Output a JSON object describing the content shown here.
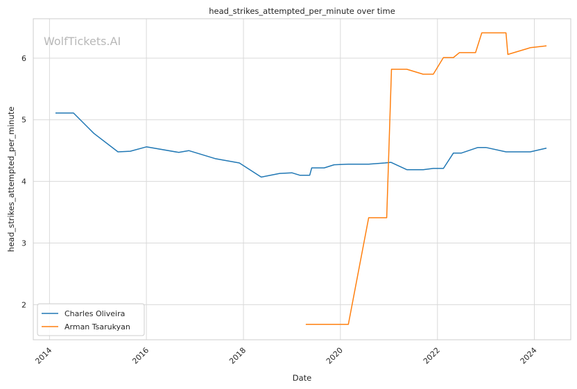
{
  "watermark": "WolfTickets.AI",
  "chart_data": {
    "type": "line",
    "title": "head_strikes_attempted_per_minute over time",
    "xlabel": "Date",
    "ylabel": "head_strikes_attempted_per_minute",
    "xlim": [
      "2013-09-01",
      "2024-10-01"
    ],
    "ylim": [
      1.43,
      6.64
    ],
    "xticks": [
      "2014",
      "2016",
      "2018",
      "2020",
      "2022",
      "2024"
    ],
    "yticks": [
      "2",
      "3",
      "4",
      "5",
      "6"
    ],
    "grid": true,
    "legend_position": "lower-left",
    "series": [
      {
        "name": "Charles Oliveira",
        "color": "#1f77b4",
        "points": [
          [
            "2014-02-15",
            5.11
          ],
          [
            "2014-07-01",
            5.11
          ],
          [
            "2014-12-01",
            4.78
          ],
          [
            "2015-06-01",
            4.48
          ],
          [
            "2015-09-01",
            4.49
          ],
          [
            "2016-01-01",
            4.56
          ],
          [
            "2016-09-01",
            4.47
          ],
          [
            "2016-11-15",
            4.5
          ],
          [
            "2017-06-01",
            4.37
          ],
          [
            "2017-12-01",
            4.3
          ],
          [
            "2018-05-15",
            4.07
          ],
          [
            "2018-10-01",
            4.13
          ],
          [
            "2019-01-01",
            4.14
          ],
          [
            "2019-03-01",
            4.1
          ],
          [
            "2019-05-15",
            4.1
          ],
          [
            "2019-05-30",
            4.22
          ],
          [
            "2019-09-01",
            4.22
          ],
          [
            "2019-11-15",
            4.27
          ],
          [
            "2020-03-01",
            4.28
          ],
          [
            "2020-08-01",
            4.28
          ],
          [
            "2020-12-01",
            4.3
          ],
          [
            "2021-01-15",
            4.31
          ],
          [
            "2021-05-15",
            4.19
          ],
          [
            "2021-09-15",
            4.19
          ],
          [
            "2021-12-01",
            4.21
          ],
          [
            "2022-02-15",
            4.21
          ],
          [
            "2022-05-01",
            4.46
          ],
          [
            "2022-07-01",
            4.46
          ],
          [
            "2022-11-01",
            4.55
          ],
          [
            "2023-01-01",
            4.55
          ],
          [
            "2023-06-01",
            4.48
          ],
          [
            "2023-12-01",
            4.48
          ],
          [
            "2024-04-01",
            4.54
          ]
        ]
      },
      {
        "name": "Arman Tsarukyan",
        "color": "#ff7f0e",
        "points": [
          [
            "2019-04-15",
            1.68
          ],
          [
            "2020-03-01",
            1.68
          ],
          [
            "2020-08-01",
            3.41
          ],
          [
            "2020-12-15",
            3.41
          ],
          [
            "2021-01-20",
            5.82
          ],
          [
            "2021-05-15",
            5.82
          ],
          [
            "2021-09-15",
            5.74
          ],
          [
            "2021-12-01",
            5.74
          ],
          [
            "2022-02-15",
            6.01
          ],
          [
            "2022-05-01",
            6.01
          ],
          [
            "2022-06-15",
            6.09
          ],
          [
            "2022-10-15",
            6.09
          ],
          [
            "2022-12-01",
            6.41
          ],
          [
            "2023-06-01",
            6.41
          ],
          [
            "2023-06-15",
            6.06
          ],
          [
            "2023-12-01",
            6.17
          ],
          [
            "2024-04-01",
            6.2
          ]
        ]
      }
    ]
  }
}
